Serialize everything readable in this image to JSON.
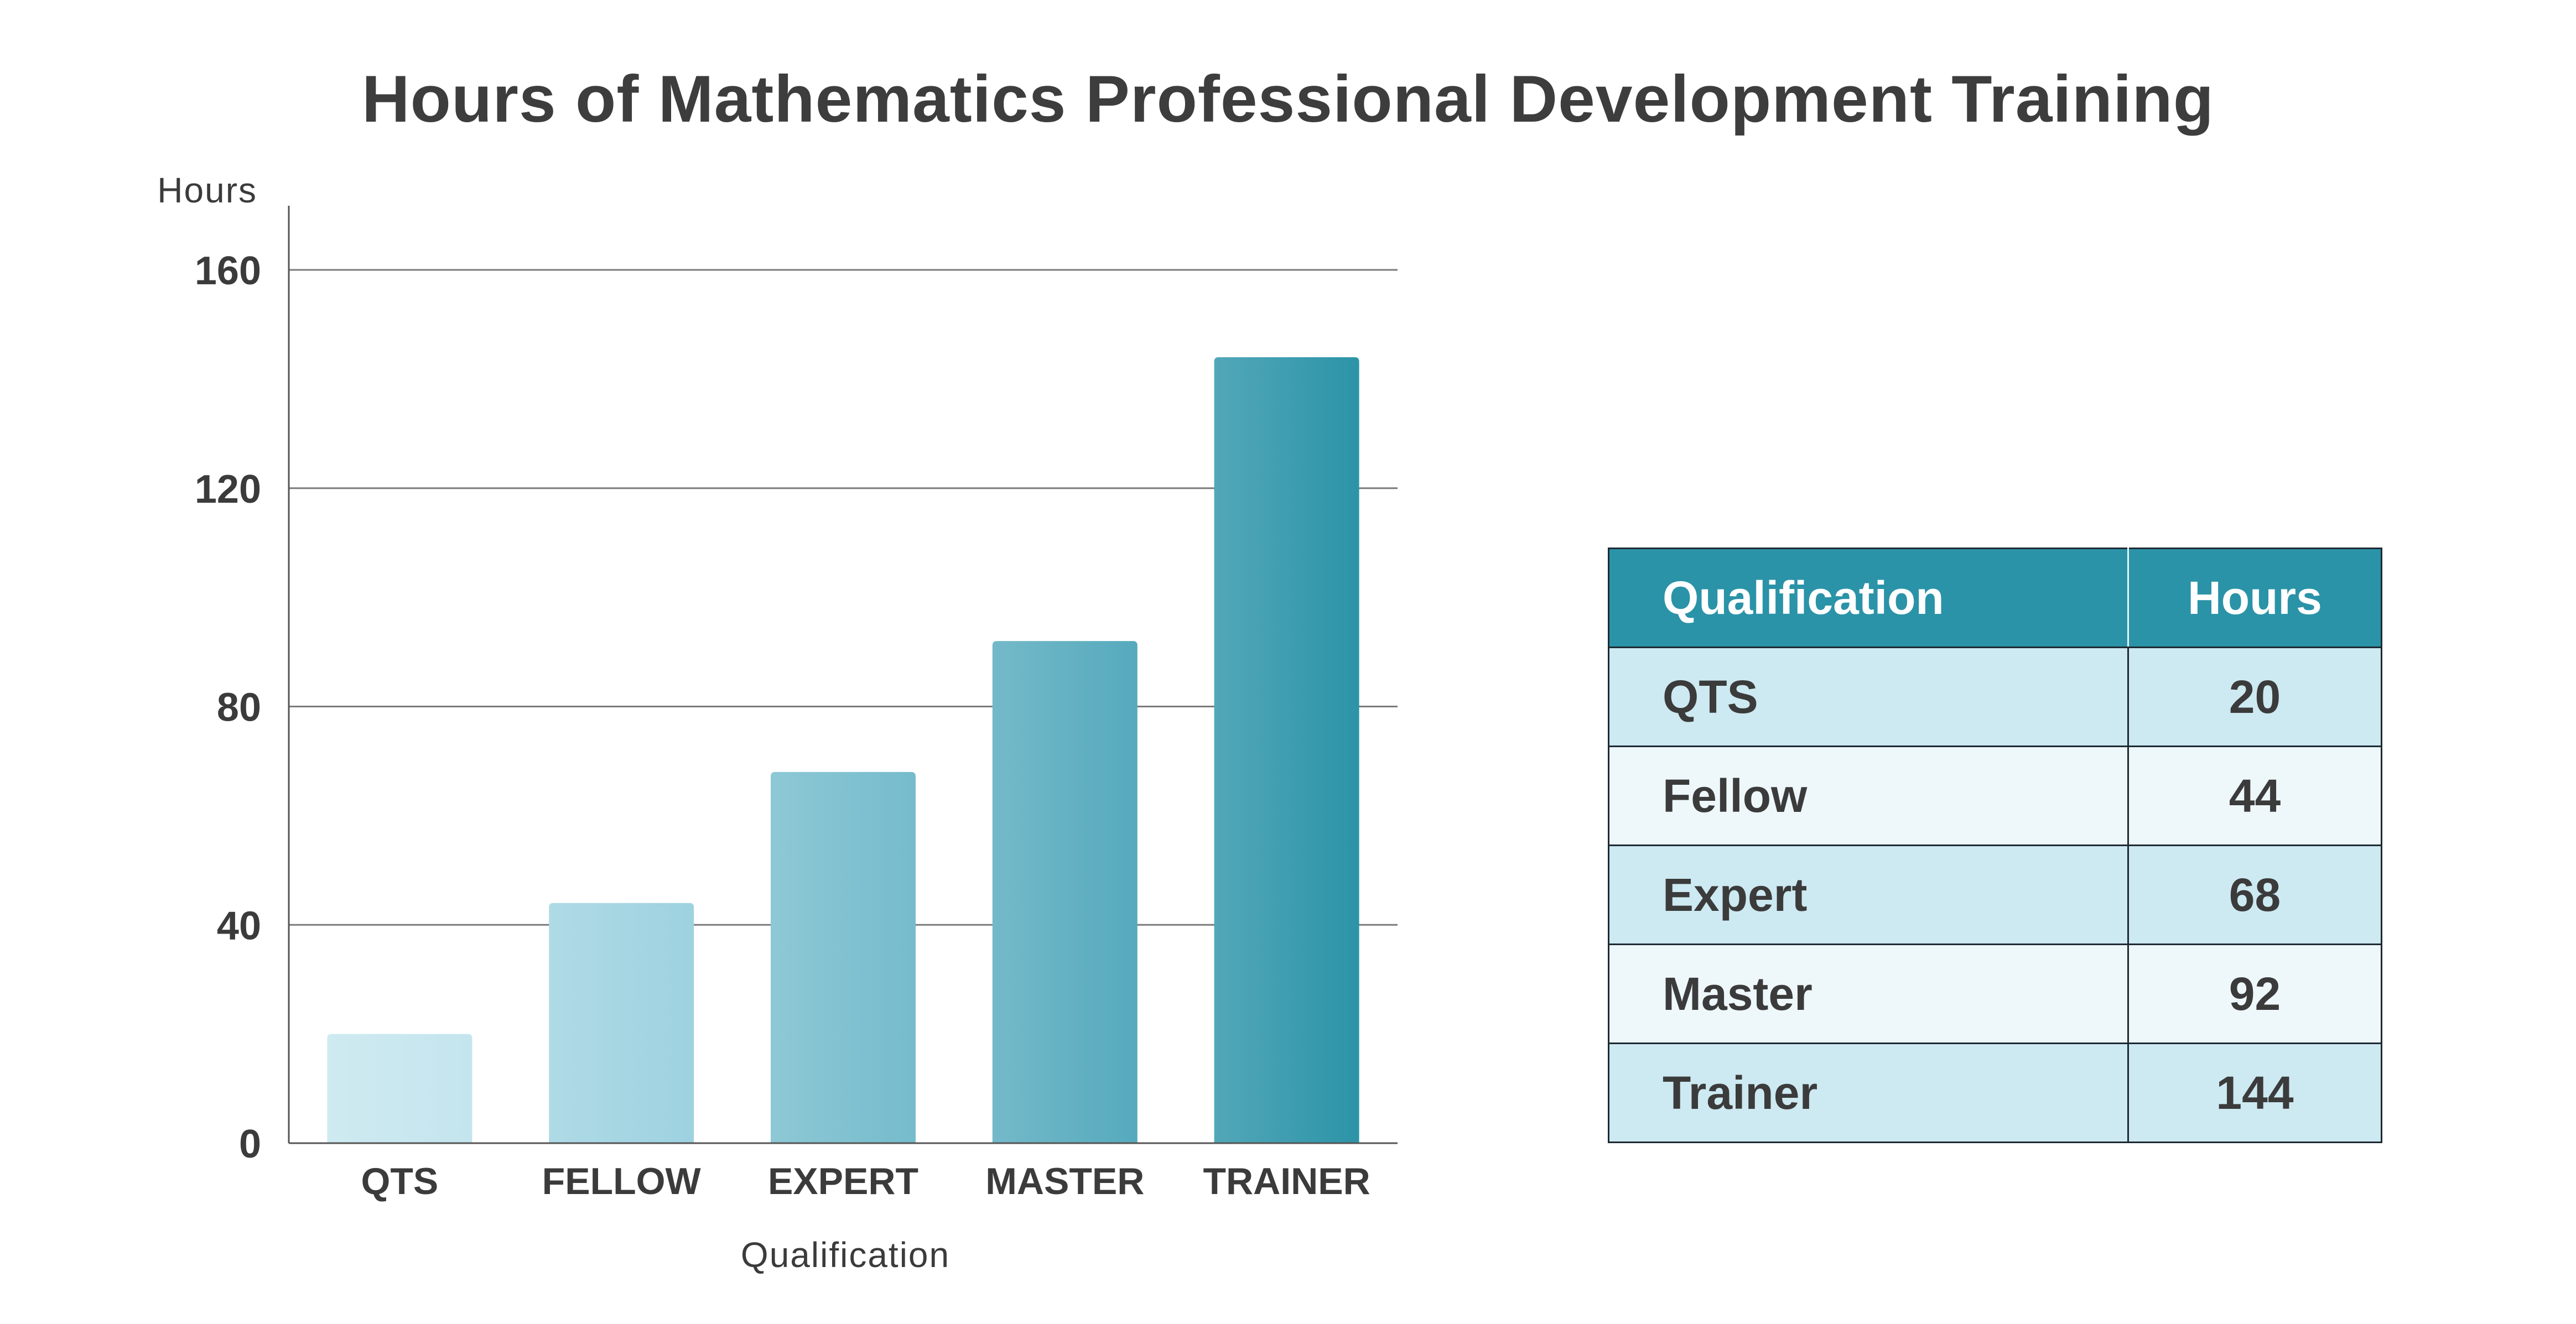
{
  "chart_data": {
    "type": "bar",
    "title": "Hours of Mathematics Professional Development Training",
    "xlabel": "Qualification",
    "ylabel": "Hours",
    "categories": [
      "QTS",
      "FELLOW",
      "EXPERT",
      "MASTER",
      "TRAINER"
    ],
    "values": [
      20,
      44,
      68,
      92,
      144
    ],
    "ylim": [
      0,
      160
    ],
    "yticks": [
      0,
      40,
      80,
      120,
      160
    ],
    "grid": true,
    "colors": [
      "#c4e5ee",
      "#9ed2e0",
      "#75bccc",
      "#55aabd",
      "#2c94a8"
    ]
  },
  "table": {
    "headers": [
      "Qualification",
      "Hours"
    ],
    "rows": [
      [
        "QTS",
        "20"
      ],
      [
        "Fellow",
        "44"
      ],
      [
        "Expert",
        "68"
      ],
      [
        "Master",
        "92"
      ],
      [
        "Trainer",
        "144"
      ]
    ],
    "header_color": "#2a93a8",
    "row_colors": [
      "#cde9f1",
      "#eef7fa"
    ]
  }
}
